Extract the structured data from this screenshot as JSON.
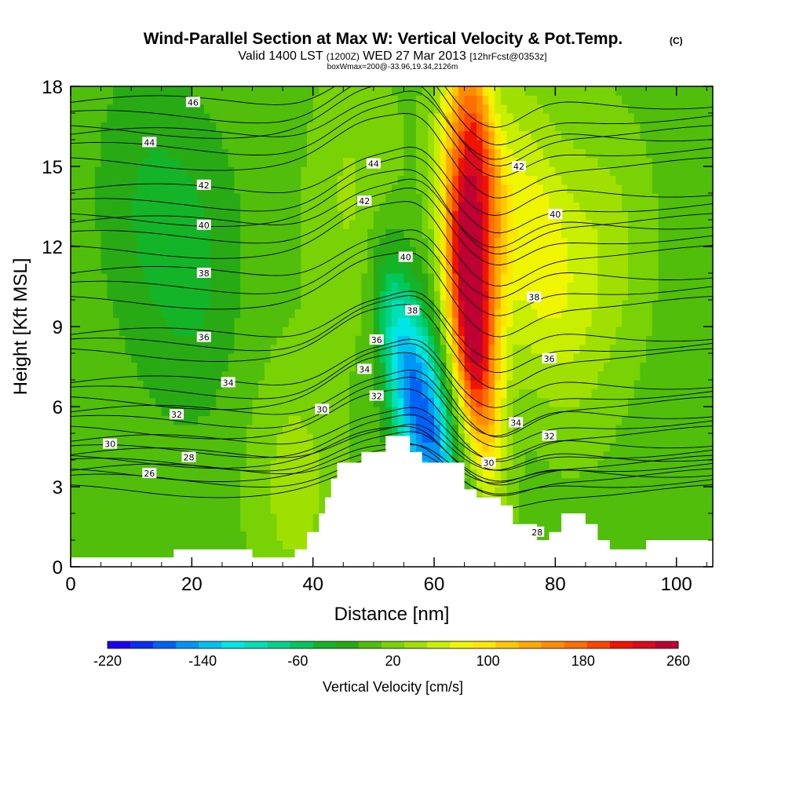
{
  "chart_data": {
    "type": "contour-cross-section",
    "title": "Wind-Parallel Section at Max W: Vertical Velocity & Pot.Temp.",
    "title_mark": "(C)",
    "subtitle_parts": [
      "Valid 1400 LST",
      "(1200Z)",
      "WED 27 Mar 2013",
      "[12hrFcst@0353z]"
    ],
    "subtitle2": "boxWmax=200@-33.96,19.34,2126m",
    "xlabel": "Distance [nm]",
    "ylabel": "Height [Kft MSL]",
    "xlim": [
      0,
      106
    ],
    "ylim": [
      0,
      18
    ],
    "xticks": [
      0,
      20,
      40,
      60,
      80,
      100
    ],
    "yticks": [
      0,
      3,
      6,
      9,
      12,
      15,
      18
    ],
    "colorbar": {
      "label": "Vertical Velocity [cm/s]",
      "min": -220,
      "max": 260,
      "step": 20,
      "tick_values": [
        -220,
        -140,
        -60,
        20,
        100,
        180,
        260
      ],
      "colors": [
        "#1e00f0",
        "#0a2ef5",
        "#0062f5",
        "#0096f5",
        "#00c2f0",
        "#00e6e6",
        "#00e0b4",
        "#00d28c",
        "#00c85a",
        "#14b428",
        "#28aa14",
        "#50be0a",
        "#78d205",
        "#a0e000",
        "#c8ee00",
        "#f0f500",
        "#ffe600",
        "#ffc800",
        "#ffaa00",
        "#ff8c00",
        "#ff6e00",
        "#ff4600",
        "#f01400",
        "#dc0a1e",
        "#be0032"
      ]
    },
    "w_features": [
      {
        "x": 20,
        "z": 11,
        "value": -30
      },
      {
        "x": 12,
        "z": 14,
        "value": -20
      },
      {
        "x": 55,
        "z": 7,
        "value": -140
      },
      {
        "x": 60,
        "z": 5,
        "value": -150
      },
      {
        "x": 66,
        "z": 12,
        "value": 250
      },
      {
        "x": 66,
        "z": 8,
        "value": 240
      },
      {
        "x": 67,
        "z": 16,
        "value": 200
      },
      {
        "x": 78,
        "z": 10,
        "value": 60
      },
      {
        "x": 75,
        "z": 14,
        "value": 70
      },
      {
        "x": 88,
        "z": 12,
        "value": 55
      },
      {
        "x": 37,
        "z": 3,
        "value": 55
      },
      {
        "x": 47,
        "z": 14,
        "value": 50
      }
    ],
    "theta_levels": [
      {
        "value": 46,
        "z": 17.4
      },
      {
        "value": 44,
        "z": 16.2
      },
      {
        "value": 42,
        "z": 14.1
      },
      {
        "value": 40,
        "z": 12.9
      },
      {
        "value": 38,
        "z": 11.0
      },
      {
        "value": 36,
        "z": 8.7
      },
      {
        "value": 34,
        "z": 6.9
      },
      {
        "value": 32,
        "z": 5.8
      },
      {
        "value": 30,
        "z": 4.7
      },
      {
        "value": 28,
        "z": 4.2
      },
      {
        "value": 26,
        "z": 3.6
      }
    ],
    "contour_labels": [
      {
        "text": "46",
        "x": 20.2,
        "z": 17.4
      },
      {
        "text": "44",
        "x": 13,
        "z": 15.9
      },
      {
        "text": "44",
        "x": 50,
        "z": 15.1
      },
      {
        "text": "42",
        "x": 22,
        "z": 14.3
      },
      {
        "text": "42",
        "x": 48.5,
        "z": 13.7
      },
      {
        "text": "42",
        "x": 74,
        "z": 15.0
      },
      {
        "text": "40",
        "x": 22,
        "z": 12.8
      },
      {
        "text": "40",
        "x": 55.3,
        "z": 11.6
      },
      {
        "text": "40",
        "x": 80,
        "z": 13.2
      },
      {
        "text": "38",
        "x": 22,
        "z": 11.0
      },
      {
        "text": "38",
        "x": 56.4,
        "z": 9.6
      },
      {
        "text": "38",
        "x": 76.5,
        "z": 10.1
      },
      {
        "text": "36",
        "x": 22,
        "z": 8.6
      },
      {
        "text": "36",
        "x": 50.5,
        "z": 8.5
      },
      {
        "text": "36",
        "x": 79,
        "z": 7.8
      },
      {
        "text": "34",
        "x": 26,
        "z": 6.9
      },
      {
        "text": "34",
        "x": 48.5,
        "z": 7.4
      },
      {
        "text": "34",
        "x": 73.5,
        "z": 5.4
      },
      {
        "text": "32",
        "x": 17.5,
        "z": 5.7
      },
      {
        "text": "32",
        "x": 50.5,
        "z": 6.4
      },
      {
        "text": "32",
        "x": 79,
        "z": 4.9
      },
      {
        "text": "30",
        "x": 6.5,
        "z": 4.6
      },
      {
        "text": "30",
        "x": 41.5,
        "z": 5.9
      },
      {
        "text": "30",
        "x": 69,
        "z": 3.9
      },
      {
        "text": "28",
        "x": 19.5,
        "z": 4.1
      },
      {
        "text": "28",
        "x": 77,
        "z": 1.3
      },
      {
        "text": "26",
        "x": 13,
        "z": 3.5
      }
    ],
    "terrain": [
      [
        0,
        0.35
      ],
      [
        17,
        0.35
      ],
      [
        17,
        0.65
      ],
      [
        25,
        0.65
      ],
      [
        25,
        0.65
      ],
      [
        30,
        0.65
      ],
      [
        30,
        0.35
      ],
      [
        37,
        0.35
      ],
      [
        37,
        0.65
      ],
      [
        39,
        0.65
      ],
      [
        39,
        1.3
      ],
      [
        41,
        1.3
      ],
      [
        41,
        2.0
      ],
      [
        42,
        2.0
      ],
      [
        42,
        2.6
      ],
      [
        43,
        2.6
      ],
      [
        43,
        3.3
      ],
      [
        44,
        3.3
      ],
      [
        44,
        3.9
      ],
      [
        48,
        3.9
      ],
      [
        48,
        4.3
      ],
      [
        52,
        4.3
      ],
      [
        52,
        4.9
      ],
      [
        56,
        4.9
      ],
      [
        56,
        4.3
      ],
      [
        58,
        4.3
      ],
      [
        58,
        3.9
      ],
      [
        65,
        3.9
      ],
      [
        65,
        2.9
      ],
      [
        67,
        2.9
      ],
      [
        67,
        2.6
      ],
      [
        71,
        2.6
      ],
      [
        71,
        2.3
      ],
      [
        73,
        2.3
      ],
      [
        73,
        1.6
      ],
      [
        77,
        1.6
      ],
      [
        77,
        1.0
      ],
      [
        79,
        1.0
      ],
      [
        79,
        1.3
      ],
      [
        81,
        1.3
      ],
      [
        81,
        2.0
      ],
      [
        85,
        2.0
      ],
      [
        85,
        1.6
      ],
      [
        87,
        1.6
      ],
      [
        87,
        1.0
      ],
      [
        89,
        1.0
      ],
      [
        89,
        0.65
      ],
      [
        95,
        0.65
      ],
      [
        95,
        1.0
      ],
      [
        106,
        1.0
      ]
    ]
  }
}
